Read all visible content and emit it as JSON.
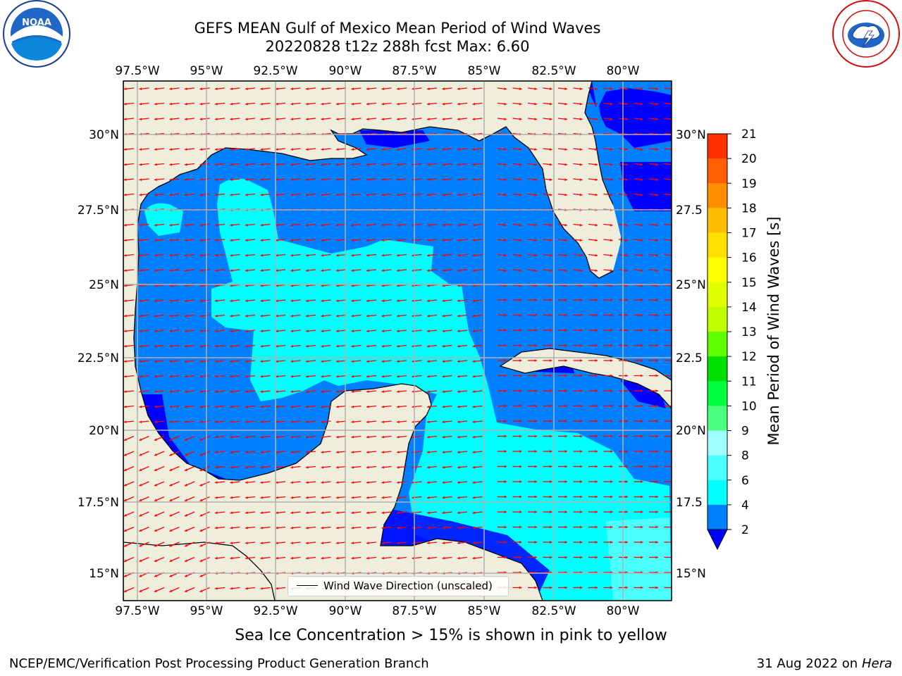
{
  "title": {
    "line1": "GEFS MEAN Gulf of Mexico Mean Period of Wind Waves",
    "line2": "20220828 t12z 288h fcst   Max: 6.60"
  },
  "logos": {
    "left": {
      "icon": "noaa-logo",
      "text": "NOAA",
      "ring_text": "NATIONAL OCEANIC AND ATMOSPHERIC ADMINISTRATION · U.S. DEPARTMENT OF COMMERCE"
    },
    "right": {
      "icon": "nws-logo",
      "ring_text": "NATIONAL WEATHER SERVICE"
    }
  },
  "map": {
    "lon_ticks": [
      "97.5°W",
      "95°W",
      "92.5°W",
      "90°W",
      "87.5°W",
      "85°W",
      "82.5°W",
      "80°W"
    ],
    "lat_ticks_left": [
      "30°N",
      "27.5°N",
      "25°N",
      "22.5°N",
      "20°N",
      "17.5°N",
      "15°N"
    ],
    "lat_ticks_right": [
      "30°N",
      "27.5",
      "25°N",
      "22.5",
      "20°N",
      "17.5",
      "15°N"
    ],
    "legend": "Wind Wave Direction (unscaled)",
    "colors": {
      "land": "#efeedd",
      "band_2_4": "#0080ff",
      "band_lt_2": "#0000ff",
      "band_4_6": "#00ffff",
      "band_6_8": "#4cffff",
      "arrow": "#ff0000",
      "grid": "#b0b0b0"
    }
  },
  "colorbar": {
    "label": "Mean Period of Wind Waves [s]",
    "ticks": [
      "2",
      "4",
      "6",
      "8",
      "9",
      "10",
      "11",
      "12",
      "13",
      "14",
      "15",
      "16",
      "17",
      "18",
      "19",
      "20",
      "21"
    ],
    "colors": [
      "#0080ff",
      "#00ffff",
      "#4cffff",
      "#a0ffff",
      "#4cff80",
      "#00ff40",
      "#00e000",
      "#60ff00",
      "#c0ff00",
      "#e0ff00",
      "#ffff00",
      "#ffe000",
      "#ffbf00",
      "#ff8f00",
      "#ff5f00",
      "#ff2f00"
    ],
    "under_color": "#0000ff"
  },
  "footer": {
    "note": "Sea Ice Concentration > 15% is shown in pink to yellow",
    "left": "NCEP/EMC/Verification Post Processing Product Generation Branch",
    "date": "31 Aug 2022 on",
    "machine": "Hera"
  }
}
